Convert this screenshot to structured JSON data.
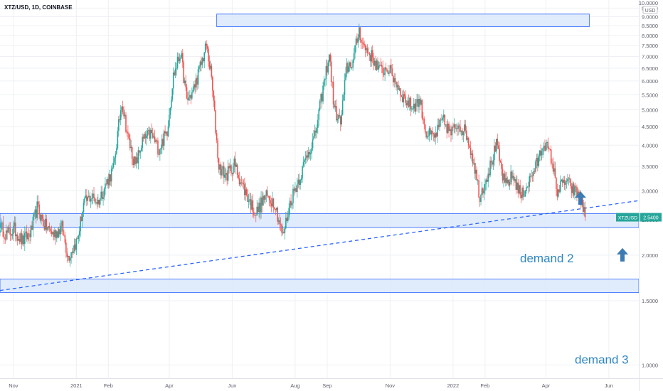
{
  "header": {
    "title": "XTZ/USD, 1D, COINBASE"
  },
  "colors": {
    "up": "#26a69a",
    "down": "#ef5350",
    "zone_fill": "#dbe9fb",
    "zone_stroke": "#2962ff",
    "trendline": "#2962ff",
    "annotation_text": "#2e86c1",
    "arrow": "#3c7cb3",
    "price_badge": "#26a69a",
    "grid": "#eef0f4",
    "axis_text": "#5d606b"
  },
  "price_tag": {
    "symbol": "XTZUSD",
    "value": "2.5400"
  },
  "y_axis_top_label": "10.0000",
  "y_axis_unit": "USD",
  "annotations": [
    {
      "id": "demand-2",
      "text": "demand 2"
    },
    {
      "id": "demand-3",
      "text": "demand 3"
    }
  ],
  "chart_data": {
    "type": "candlestick",
    "title": "XTZ/USD, 1D, COINBASE",
    "y_scale": "log",
    "ylim": [
      0.92,
      10.0
    ],
    "y_ticks": [
      "1.0000",
      "1.5000",
      "2.0000",
      "2.5000",
      "3.0000",
      "3.5000",
      "4.0000",
      "4.5000",
      "5.0000",
      "5.5000",
      "6.0000",
      "6.5000",
      "7.0000",
      "7.5000",
      "8.0000",
      "8.5000",
      "9.0000",
      "9.5000"
    ],
    "x_range": [
      "2020-10-19",
      "2022-06-30"
    ],
    "x_ticks": [
      {
        "date": "2020-11-01",
        "label": "Nov"
      },
      {
        "date": "2021-01-01",
        "label": "2021"
      },
      {
        "date": "2021-02-01",
        "label": "Feb"
      },
      {
        "date": "2021-04-01",
        "label": "Apr"
      },
      {
        "date": "2021-06-01",
        "label": "Jun"
      },
      {
        "date": "2021-08-01",
        "label": "Aug"
      },
      {
        "date": "2021-09-01",
        "label": "Sep"
      },
      {
        "date": "2021-11-01",
        "label": "Nov"
      },
      {
        "date": "2022-01-01",
        "label": "2022"
      },
      {
        "date": "2022-02-01",
        "label": "Feb"
      },
      {
        "date": "2022-04-01",
        "label": "Apr"
      },
      {
        "date": "2022-06-01",
        "label": "Jun"
      }
    ],
    "grid": true,
    "close_path": [
      [
        "2020-10-19",
        2.4
      ],
      [
        "2020-10-25",
        2.28
      ],
      [
        "2020-11-02",
        2.35
      ],
      [
        "2020-11-10",
        2.18
      ],
      [
        "2020-11-18",
        2.32
      ],
      [
        "2020-11-24",
        2.7
      ],
      [
        "2020-12-01",
        2.42
      ],
      [
        "2020-12-10",
        2.28
      ],
      [
        "2020-12-18",
        2.38
      ],
      [
        "2020-12-24",
        1.98
      ],
      [
        "2021-01-02",
        2.2
      ],
      [
        "2021-01-08",
        2.75
      ],
      [
        "2021-01-15",
        2.9
      ],
      [
        "2021-01-22",
        2.8
      ],
      [
        "2021-01-29",
        3.1
      ],
      [
        "2021-02-06",
        3.45
      ],
      [
        "2021-02-14",
        5.3
      ],
      [
        "2021-02-20",
        4.2
      ],
      [
        "2021-02-27",
        3.5
      ],
      [
        "2021-03-06",
        4.1
      ],
      [
        "2021-03-14",
        4.3
      ],
      [
        "2021-03-22",
        3.9
      ],
      [
        "2021-03-30",
        4.4
      ],
      [
        "2021-04-05",
        6.2
      ],
      [
        "2021-04-12",
        7.2
      ],
      [
        "2021-04-18",
        5.3
      ],
      [
        "2021-04-24",
        5.6
      ],
      [
        "2021-04-30",
        6.4
      ],
      [
        "2021-05-07",
        7.5
      ],
      [
        "2021-05-12",
        6.1
      ],
      [
        "2021-05-19",
        3.5
      ],
      [
        "2021-05-26",
        3.3
      ],
      [
        "2021-06-03",
        3.55
      ],
      [
        "2021-06-10",
        3.15
      ],
      [
        "2021-06-18",
        2.8
      ],
      [
        "2021-06-24",
        2.6
      ],
      [
        "2021-07-03",
        2.9
      ],
      [
        "2021-07-12",
        2.8
      ],
      [
        "2021-07-20",
        2.25
      ],
      [
        "2021-07-28",
        2.85
      ],
      [
        "2021-08-06",
        3.3
      ],
      [
        "2021-08-13",
        3.8
      ],
      [
        "2021-08-20",
        4.2
      ],
      [
        "2021-08-27",
        5.5
      ],
      [
        "2021-09-03",
        7.1
      ],
      [
        "2021-09-08",
        5.0
      ],
      [
        "2021-09-14",
        4.6
      ],
      [
        "2021-09-20",
        6.5
      ],
      [
        "2021-09-26",
        6.8
      ],
      [
        "2021-10-02",
        8.3
      ],
      [
        "2021-10-06",
        7.5
      ],
      [
        "2021-10-14",
        7.0
      ],
      [
        "2021-10-22",
        6.4
      ],
      [
        "2021-10-30",
        6.5
      ],
      [
        "2021-11-06",
        6.0
      ],
      [
        "2021-11-14",
        5.4
      ],
      [
        "2021-11-22",
        5.1
      ],
      [
        "2021-11-30",
        5.3
      ],
      [
        "2021-12-06",
        4.3
      ],
      [
        "2021-12-14",
        4.2
      ],
      [
        "2021-12-22",
        4.7
      ],
      [
        "2021-12-30",
        4.3
      ],
      [
        "2022-01-06",
        4.6
      ],
      [
        "2022-01-14",
        4.3
      ],
      [
        "2022-01-21",
        3.6
      ],
      [
        "2022-01-27",
        2.9
      ],
      [
        "2022-02-06",
        3.5
      ],
      [
        "2022-02-12",
        4.0
      ],
      [
        "2022-02-20",
        3.1
      ],
      [
        "2022-02-28",
        3.3
      ],
      [
        "2022-03-08",
        2.9
      ],
      [
        "2022-03-16",
        3.2
      ],
      [
        "2022-03-24",
        3.6
      ],
      [
        "2022-03-30",
        4.1
      ],
      [
        "2022-04-06",
        3.7
      ],
      [
        "2022-04-12",
        3.0
      ],
      [
        "2022-04-20",
        3.2
      ],
      [
        "2022-04-28",
        3.0
      ],
      [
        "2022-05-04",
        2.9
      ],
      [
        "2022-05-09",
        2.54
      ]
    ],
    "zones": [
      {
        "id": "supply",
        "x": [
          "2021-05-17",
          "2022-05-13"
        ],
        "y": [
          8.45,
          9.15
        ]
      },
      {
        "id": "demand-2",
        "x": [
          "2020-10-19",
          "2022-06-30"
        ],
        "y": [
          2.38,
          2.6
        ]
      },
      {
        "id": "demand-3",
        "x": [
          "2020-10-19",
          "2022-06-30"
        ],
        "y": [
          1.58,
          1.72
        ]
      }
    ],
    "trendline": {
      "points": [
        [
          "2020-10-19",
          1.6
        ],
        [
          "2022-06-30",
          2.82
        ]
      ],
      "style": "dashed"
    },
    "last_price": 2.54
  }
}
